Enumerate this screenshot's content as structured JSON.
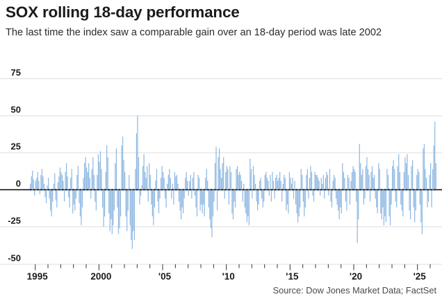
{
  "header": {
    "title": "SOX rolling 18-day performance",
    "subtitle": "The last time the index saw a comparable gain over an 18-day period was late 2002"
  },
  "source": "Source: Dow Jones Market Data; FactSet",
  "colors": {
    "bar": "#8DB7E1",
    "zero_line": "#000000",
    "grid": "#dcdcdc",
    "tick": "#333333",
    "axis_text": "#1a1a1a",
    "source_text": "#4a4a4a"
  },
  "chart_data": {
    "type": "bar",
    "title": "SOX rolling 18-day performance",
    "xlabel": "",
    "ylabel": "",
    "ylim": [
      -50,
      75
    ],
    "grid": true,
    "y_ticks": [
      75,
      50,
      25,
      0,
      -25,
      -50
    ],
    "x_tick_years_start": 1995,
    "x_tick_years_end": 2026,
    "x_tick_labels": {
      "1995": "1995",
      "2000": "2000",
      "2005": "'05",
      "2010": "'10",
      "2015": "'15",
      "2020": "'20",
      "2025": "'25"
    },
    "series_start_year": 1994.5833,
    "series_interval_years": 0.083333,
    "values": [
      4,
      9,
      13,
      7,
      -4,
      6,
      8,
      12,
      6,
      -3,
      10,
      14,
      9,
      4,
      -5,
      -9,
      3,
      8,
      -6,
      -14,
      -18,
      -8,
      4,
      11,
      -7,
      -12,
      5,
      9,
      15,
      12,
      10,
      6,
      -8,
      12,
      18,
      9,
      -5,
      -12,
      8,
      14,
      -16,
      -10,
      -14,
      -6,
      10,
      16,
      -9,
      -18,
      -24,
      -12,
      8,
      18,
      22,
      15,
      12,
      18,
      8,
      -6,
      14,
      22,
      10,
      -8,
      -14,
      10,
      24,
      19,
      26,
      14,
      -12,
      -25,
      -18,
      12,
      30,
      22,
      -16,
      -28,
      -20,
      -30,
      -24,
      -14,
      18,
      28,
      -12,
      -30,
      -26,
      -18,
      30,
      36,
      20,
      12,
      -18,
      -28,
      -14,
      10,
      -24,
      -34,
      -40,
      -28,
      -34,
      14,
      38,
      50,
      22,
      -10,
      -4,
      3,
      16,
      24,
      12,
      8,
      16,
      -8,
      18,
      10,
      -10,
      -18,
      -24,
      -12,
      6,
      14,
      -8,
      -16,
      -6,
      8,
      16,
      12,
      8,
      -6,
      -12,
      4,
      10,
      14,
      8,
      -6,
      4,
      -10,
      12,
      9,
      10,
      4,
      -8,
      -14,
      -20,
      -12,
      -16,
      -6,
      8,
      12,
      6,
      -4,
      6,
      10,
      -6,
      8,
      12,
      -4,
      -12,
      -18,
      10,
      8,
      -14,
      -10,
      -16,
      -10,
      -18,
      8,
      14,
      6,
      -12,
      -20,
      -26,
      -32,
      -18,
      -8,
      18,
      29,
      -14,
      22,
      28,
      14,
      8,
      18,
      22,
      -6,
      12,
      16,
      14,
      -10,
      16,
      12,
      -16,
      -20,
      -8,
      -12,
      14,
      16,
      10,
      12,
      10,
      6,
      -8,
      4,
      -12,
      -16,
      -22,
      -18,
      -24,
      21,
      14,
      -6,
      16,
      10,
      4,
      -8,
      -14,
      -10,
      6,
      8,
      -6,
      -12,
      -8,
      10,
      12,
      8,
      6,
      -4,
      10,
      -8,
      12,
      6,
      -6,
      8,
      10,
      6,
      8,
      12,
      6,
      -8,
      4,
      10,
      8,
      -14,
      -10,
      -16,
      12,
      8,
      4,
      8,
      -6,
      6,
      -10,
      -16,
      -22,
      -18,
      -12,
      14,
      10,
      -8,
      -18,
      -12,
      10,
      14,
      -6,
      8,
      16,
      12,
      -4,
      -8,
      12,
      10,
      10,
      8,
      6,
      -4,
      8,
      4,
      10,
      -6,
      8,
      12,
      10,
      -4,
      14,
      -8,
      -12,
      6,
      10,
      8,
      -6,
      -10,
      -14,
      -20,
      -12,
      -16,
      18,
      12,
      8,
      -8,
      -14,
      10,
      8,
      -10,
      6,
      12,
      16,
      14,
      12,
      -8,
      -36,
      -20,
      31,
      18,
      10,
      14,
      -10,
      -6,
      16,
      22,
      14,
      10,
      -8,
      12,
      16,
      8,
      10,
      -6,
      -12,
      -16,
      18,
      14,
      -16,
      -20,
      -12,
      -24,
      -18,
      -22,
      14,
      10,
      -18,
      -24,
      -10,
      16,
      20,
      14,
      -8,
      -12,
      16,
      24,
      12,
      -10,
      -14,
      -18,
      12,
      22,
      18,
      24,
      10,
      -14,
      -20,
      16,
      20,
      -12,
      -22,
      -14,
      10,
      14,
      12,
      -10,
      -22,
      -30,
      28,
      31,
      14,
      8,
      -12,
      -8,
      10,
      18,
      -12,
      14,
      30,
      46,
      18
    ]
  }
}
